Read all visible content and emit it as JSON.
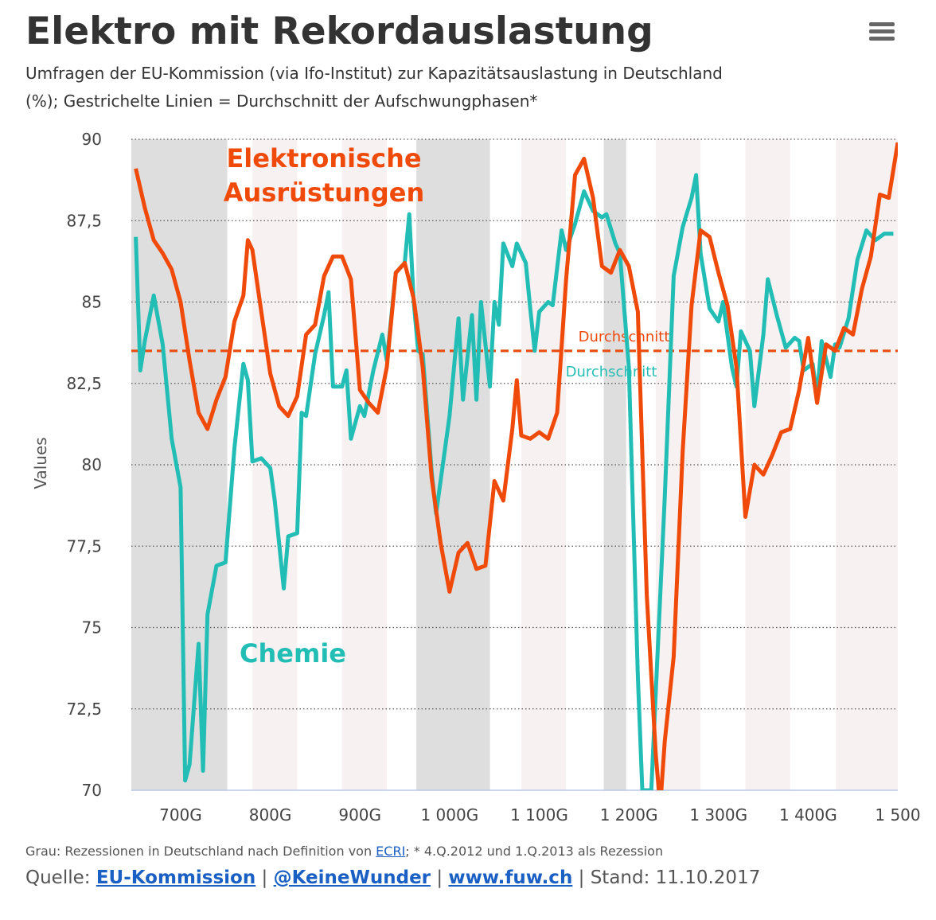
{
  "chart_data": {
    "type": "line",
    "title": "Elektro mit Rekordauslastung",
    "subtitle": [
      "Umfragen der EU-Kommission (via Ifo-Institut) zur Kapazitätsauslastung in Deutschland",
      "(%); Gestrichelte Linien = Durchschnitt der Aufschwungphasen*"
    ],
    "y_label": "Values",
    "xlim": [
      645,
      1500
    ],
    "ylim": [
      70,
      90
    ],
    "xticks": [
      {
        "value": 700,
        "label": "700G"
      },
      {
        "value": 800,
        "label": "800G"
      },
      {
        "value": 900,
        "label": "900G"
      },
      {
        "value": 1000,
        "label": "1 000G"
      },
      {
        "value": 1100,
        "label": "1 100G"
      },
      {
        "value": 1200,
        "label": "1 200G"
      },
      {
        "value": 1300,
        "label": "1 300G"
      },
      {
        "value": 1400,
        "label": "1 400G"
      },
      {
        "value": 1500,
        "label": "1 500"
      }
    ],
    "yticks": [
      70,
      {
        "value": 72.5,
        "label": "72,5"
      },
      75,
      {
        "value": 77.5,
        "label": "77,5"
      },
      80,
      {
        "value": 82.5,
        "label": "82,5"
      },
      85,
      {
        "value": 87.5,
        "label": "87,5"
      },
      90
    ],
    "grid": true,
    "bands": [
      {
        "from": 780,
        "to": 830,
        "color": "#f8f1f1"
      },
      {
        "from": 880,
        "to": 930,
        "color": "#f8f1f1"
      },
      {
        "from": 1080,
        "to": 1130,
        "color": "#f8f1f1"
      },
      {
        "from": 1230,
        "to": 1280,
        "color": "#f8f1f1"
      },
      {
        "from": 1330,
        "to": 1380,
        "color": "#f8f1f1"
      },
      {
        "from": 1431,
        "to": 1481,
        "color": "#f8f1f1"
      },
      {
        "from": 1481,
        "to": 1500,
        "color": "#f8f1f1"
      },
      {
        "from": 645,
        "to": 752,
        "color": "#dedede"
      },
      {
        "from": 963,
        "to": 1045,
        "color": "#dedede"
      },
      {
        "from": 1172,
        "to": 1197,
        "color": "#dedede"
      }
    ],
    "averages": [
      {
        "name": "Durchschnitt",
        "value": 83.5,
        "color": "#22bdb5"
      },
      {
        "name": "Durchschnitt",
        "value": 83.5,
        "color": "#f04a0a"
      }
    ],
    "series": [
      {
        "color": "#22bdb5",
        "x": [
          650,
          655,
          660,
          670,
          680,
          690,
          700,
          705,
          710,
          720,
          725,
          730,
          740,
          750,
          760,
          770,
          775,
          780,
          790,
          800,
          805,
          815,
          820,
          830,
          835,
          840,
          850,
          860,
          865,
          870,
          880,
          885,
          890,
          900,
          905,
          915,
          925,
          930,
          940,
          950,
          955,
          960,
          965,
          970,
          980,
          985,
          1000,
          1010,
          1015,
          1025,
          1030,
          1035,
          1045,
          1050,
          1055,
          1060,
          1070,
          1075,
          1085,
          1090,
          1095,
          1100,
          1110,
          1115,
          1125,
          1130,
          1140,
          1150,
          1160,
          1170,
          1175,
          1185,
          1190,
          1200,
          1210,
          1215,
          1225,
          1230,
          1240,
          1250,
          1260,
          1270,
          1275,
          1280,
          1290,
          1300,
          1305,
          1315,
          1320,
          1325,
          1335,
          1340,
          1350,
          1355,
          1365,
          1375,
          1385,
          1390,
          1395,
          1405,
          1410,
          1415,
          1425,
          1430,
          1435,
          1445,
          1455,
          1465,
          1475,
          1485,
          1495
        ],
        "values": [
          87.0,
          82.9,
          83.8,
          85.2,
          83.7,
          80.8,
          79.3,
          70.3,
          70.8,
          74.5,
          70.6,
          75.4,
          76.9,
          77.0,
          80.5,
          83.1,
          82.6,
          80.1,
          80.2,
          79.9,
          78.9,
          76.2,
          77.8,
          77.9,
          81.6,
          81.5,
          83.4,
          84.6,
          85.3,
          82.4,
          82.4,
          82.9,
          80.8,
          81.8,
          81.5,
          82.9,
          84.0,
          83.2,
          85.9,
          86.2,
          87.7,
          85.0,
          83.5,
          83.4,
          79.8,
          78.5,
          81.5,
          84.5,
          82.0,
          84.6,
          82.0,
          85.0,
          82.4,
          85.0,
          84.3,
          86.8,
          86.1,
          86.8,
          86.2,
          84.8,
          83.5,
          84.7,
          85.0,
          84.9,
          87.2,
          86.6,
          87.4,
          88.4,
          87.8,
          87.6,
          87.7,
          86.8,
          86.5,
          83.0,
          73.5,
          70.0,
          70.0,
          73.0,
          79.0,
          85.8,
          87.3,
          88.2,
          88.9,
          86.5,
          84.8,
          84.4,
          85.0,
          83.0,
          82.4,
          84.1,
          83.5,
          81.8,
          84.0,
          85.7,
          84.6,
          83.6,
          83.9,
          83.8,
          82.9,
          83.1,
          82.1,
          83.8,
          82.7,
          83.7,
          83.6,
          84.5,
          86.3,
          87.2,
          86.9,
          87.1,
          87.1
        ]
      },
      {
        "color": "#f04a0a",
        "x": [
          650,
          660,
          670,
          680,
          690,
          700,
          710,
          720,
          730,
          740,
          750,
          760,
          770,
          775,
          780,
          790,
          800,
          810,
          820,
          830,
          840,
          850,
          860,
          870,
          880,
          890,
          900,
          910,
          920,
          930,
          940,
          950,
          960,
          970,
          980,
          990,
          1000,
          1010,
          1020,
          1030,
          1040,
          1050,
          1060,
          1070,
          1075,
          1080,
          1090,
          1100,
          1110,
          1120,
          1130,
          1140,
          1150,
          1160,
          1170,
          1180,
          1190,
          1200,
          1210,
          1220,
          1230,
          1235,
          1240,
          1250,
          1260,
          1270,
          1280,
          1290,
          1300,
          1310,
          1320,
          1330,
          1340,
          1350,
          1360,
          1370,
          1380,
          1390,
          1400,
          1410,
          1420,
          1430,
          1440,
          1450,
          1460,
          1470,
          1480,
          1490,
          1500
        ],
        "values": [
          89.1,
          87.9,
          86.9,
          86.5,
          86.0,
          85.0,
          83.2,
          81.6,
          81.1,
          82.0,
          82.7,
          84.4,
          85.2,
          86.9,
          86.6,
          84.7,
          82.8,
          81.8,
          81.5,
          82.1,
          84.0,
          84.3,
          85.8,
          86.4,
          86.4,
          85.7,
          82.3,
          81.9,
          81.6,
          83.0,
          85.9,
          86.2,
          85.1,
          83.0,
          79.6,
          77.6,
          76.1,
          77.3,
          77.6,
          76.8,
          76.9,
          79.5,
          78.9,
          81.1,
          82.6,
          80.9,
          80.8,
          81.0,
          80.8,
          81.6,
          85.7,
          88.9,
          89.4,
          88.2,
          86.1,
          85.9,
          86.6,
          86.1,
          84.7,
          76.0,
          71.1,
          69.5,
          71.5,
          74.1,
          80.4,
          84.9,
          87.2,
          87.0,
          85.9,
          84.9,
          83.0,
          78.4,
          80.0,
          79.7,
          80.3,
          81.0,
          81.1,
          82.3,
          83.9,
          81.9,
          83.7,
          83.5,
          84.2,
          84.0,
          85.4,
          86.4,
          88.3,
          88.2,
          89.9
        ]
      }
    ],
    "annotations": [
      {
        "text": [
          "Elektronische",
          "Ausrüstungen"
        ],
        "color": "#f04a0a"
      },
      {
        "text": [
          "Chemie"
        ],
        "color": "#22bdb5"
      }
    ],
    "footer": {
      "note": [
        "Grau: Rezessionen in Deutschland nach Definition von ",
        "ECRI",
        "; * 4.Q.2012 und 1.Q.2013 als Rezession"
      ],
      "source": [
        "Quelle: ",
        "EU-Kommission",
        " | ",
        "@KeineWunder",
        " | ",
        "www.fuw.ch",
        " | Stand: 11.10.2017"
      ]
    }
  }
}
